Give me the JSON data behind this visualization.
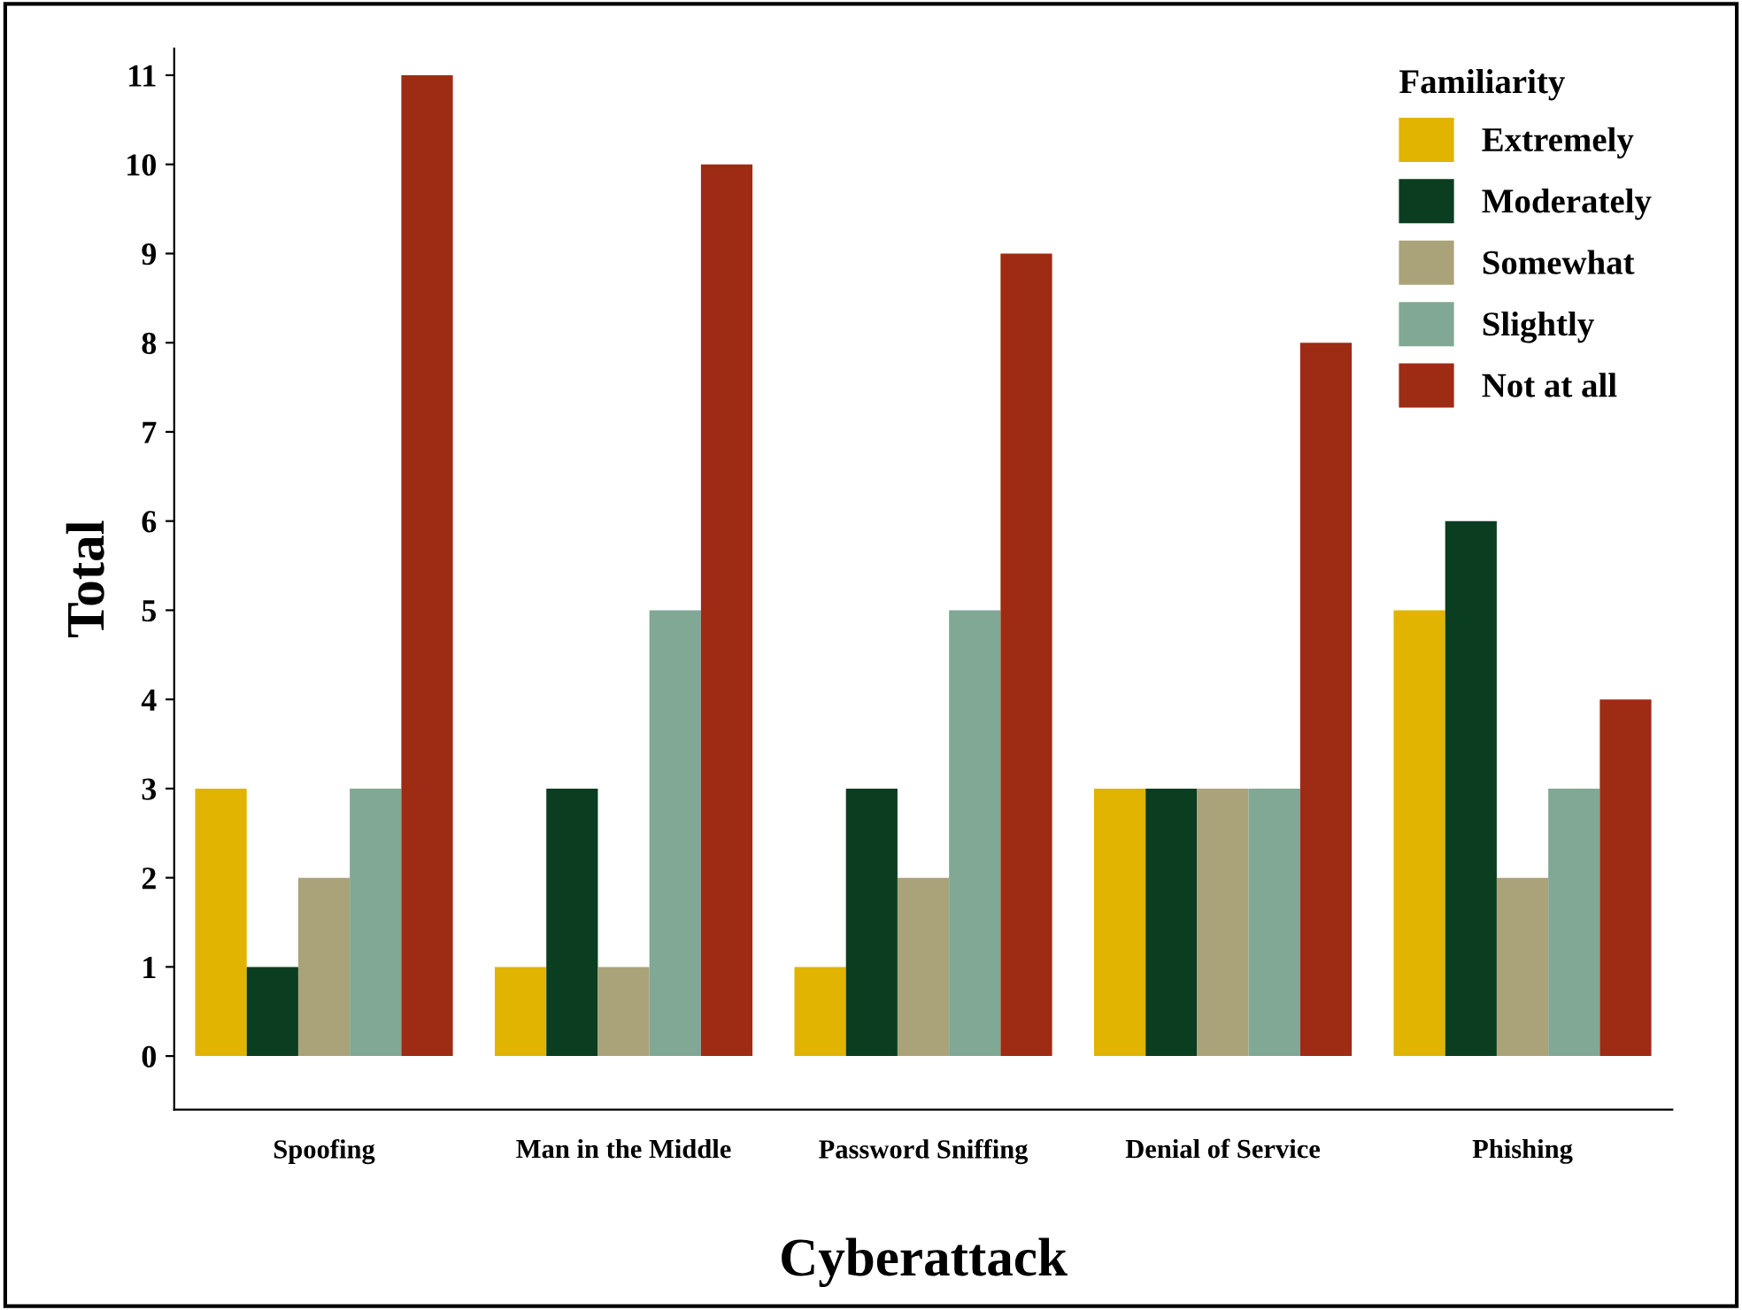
{
  "chart_data": {
    "type": "bar",
    "xlabel": "Cyberattack",
    "ylabel": "Total",
    "legend_title": "Familiarity",
    "legend": "top right",
    "grid": false,
    "categories": [
      "Spoofing",
      "Man in the Middle",
      "Password Sniffing",
      "Denial of Service",
      "Phishing"
    ],
    "ylim": [
      -0.6,
      11.3
    ],
    "yticks": [
      0,
      1,
      2,
      3,
      4,
      5,
      6,
      7,
      8,
      9,
      10,
      11
    ],
    "series": [
      {
        "name": "Extremely",
        "color": "#e0b400",
        "values": [
          3,
          1,
          1,
          3,
          5
        ]
      },
      {
        "name": "Moderately",
        "color": "#0b3d20",
        "values": [
          1,
          3,
          3,
          3,
          6
        ]
      },
      {
        "name": "Somewhat",
        "color": "#aaa37a",
        "values": [
          2,
          1,
          2,
          3,
          2
        ]
      },
      {
        "name": "Slightly",
        "color": "#80a894",
        "values": [
          3,
          5,
          5,
          3,
          3
        ]
      },
      {
        "name": "Not at all",
        "color": "#9e2b14",
        "values": [
          11,
          10,
          9,
          8,
          4
        ]
      }
    ]
  }
}
